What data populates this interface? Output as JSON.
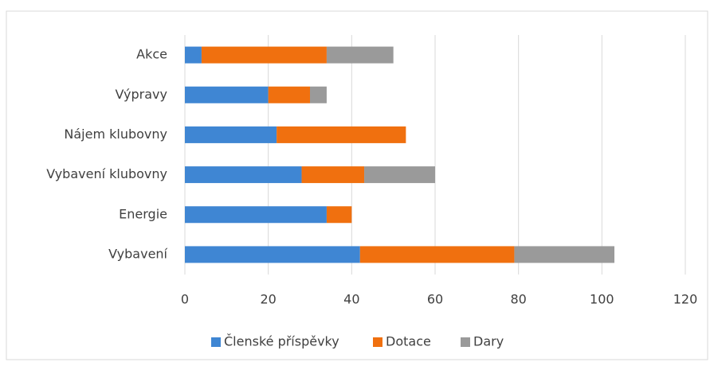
{
  "chart_data": {
    "type": "bar",
    "orientation": "horizontal",
    "stacked": true,
    "categories": [
      "Akce",
      "Výpravy",
      "Nájem klubovny",
      "Vybavení klubovny",
      "Energie",
      "Vybavení"
    ],
    "series": [
      {
        "name": "Členské příspěvky",
        "color": "#3f86d3",
        "values": [
          4,
          20,
          22,
          28,
          34,
          42
        ]
      },
      {
        "name": "Dotace",
        "color": "#f0700f",
        "values": [
          30,
          10,
          31,
          15,
          6,
          37
        ]
      },
      {
        "name": "Dary",
        "color": "#9a9a9a",
        "values": [
          16,
          4,
          0,
          17,
          0,
          24
        ]
      }
    ],
    "xlim": [
      0,
      120
    ],
    "xticks": [
      0,
      20,
      40,
      60,
      80,
      100,
      120
    ],
    "grid": true,
    "legend": "bottom"
  }
}
